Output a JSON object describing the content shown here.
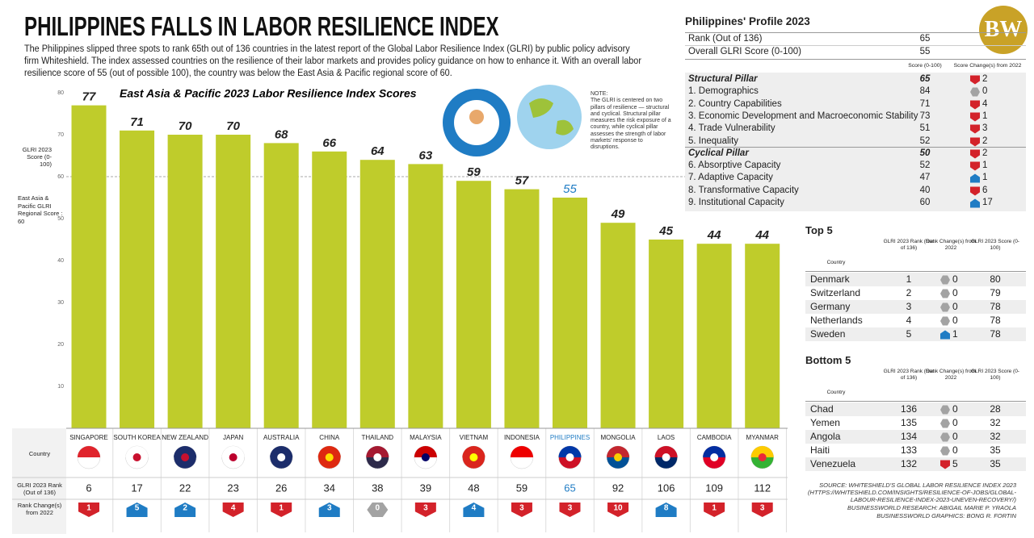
{
  "header": {
    "title": "PHILIPPINES FALLS IN LABOR RESILIENCE INDEX",
    "text": "The Philippines slipped three spots to rank 65th out of 136 countries in the latest report of the Global Labor Resilience Index (GLRI) by public policy advisory firm Whiteshield. The index assessed countries on the resilience of their labor markets and provides policy guidance on how to enhance it. With an overall labor resilience score of 55 (out of possible 100), the country was below the East Asia & Pacific regional score of 60.",
    "logo": "BW"
  },
  "direction_colors": {
    "down": "#d3222a",
    "up": "#1f7cc4",
    "same": "#a3a3a3"
  },
  "chart_data": {
    "type": "bar",
    "title": "East Asia & Pacific 2023 Labor Resilience Index Scores",
    "ylabel": "GLRI 2023 Score (0-100)",
    "categories": [
      "SINGAPORE",
      "SOUTH KOREA",
      "NEW ZEALAND",
      "JAPAN",
      "AUSTRALIA",
      "CHINA",
      "THAILAND",
      "MALAYSIA",
      "VIETNAM",
      "INDONESIA",
      "PHILIPPINES",
      "MONGOLIA",
      "LAOS",
      "CAMBODIA",
      "MYANMAR"
    ],
    "values": [
      77,
      71,
      70,
      70,
      68,
      66,
      64,
      63,
      59,
      57,
      55,
      49,
      45,
      44,
      44
    ],
    "color": "#bfcc2b",
    "highlight": "PHILIPPINES",
    "highlight_color": "#1f7cc4",
    "ylim": [
      0,
      80
    ],
    "yticks": [
      10,
      20,
      30,
      40,
      50,
      60,
      70,
      80
    ],
    "grid": false,
    "reference": {
      "value": 60,
      "label": "East Asia & Pacific GLRI Regional Score : 60"
    },
    "row_labels": {
      "country": "Country",
      "rank": "GLRI 2023 Rank (Out of 136)",
      "change": "Rank Change(s) from 2022"
    },
    "rank": [
      6,
      17,
      22,
      23,
      26,
      34,
      38,
      39,
      48,
      59,
      65,
      92,
      106,
      109,
      112
    ],
    "rank_change": [
      1,
      5,
      2,
      4,
      1,
      3,
      0,
      3,
      4,
      3,
      3,
      10,
      8,
      1,
      3
    ],
    "rank_change_direction": [
      "down",
      "up",
      "up",
      "down",
      "down",
      "up",
      "same",
      "down",
      "up",
      "down",
      "down",
      "down",
      "up",
      "down",
      "down"
    ],
    "note": {
      "title": "NOTE:",
      "text": "The GLRI is centered on two pillars of resilience — structural and cyclical. Structural pillar measures the risk exposure of a country, while cyclical pillar assesses the strength of labor markets' response to disruptions."
    }
  },
  "profile": {
    "title": "Philippines' Profile 2023",
    "rank_label": "Rank (Out of 136)",
    "rank": 65,
    "score_label": "Overall GLRI Score (0-100)",
    "score": 55,
    "columns": [
      "Score (0-100)",
      "Score Change(s) from 2022"
    ],
    "rows": [
      {
        "label": "Structural Pillar",
        "score": 65,
        "change": 2,
        "direction": "down",
        "bold": true
      },
      {
        "label": "1. Demographics",
        "score": 84,
        "change": 0,
        "direction": "same"
      },
      {
        "label": "2. Country Capabilities",
        "score": 71,
        "change": 4,
        "direction": "down"
      },
      {
        "label": "3. Economic Development and Macroeconomic Stability",
        "score": 73,
        "change": 1,
        "direction": "down"
      },
      {
        "label": "4. Trade Vulnerability",
        "score": 51,
        "change": 3,
        "direction": "down"
      },
      {
        "label": "5. Inequality",
        "score": 52,
        "change": 2,
        "direction": "down"
      },
      {
        "label": "Cyclical Pillar",
        "score": 50,
        "change": 2,
        "direction": "down",
        "bold": true
      },
      {
        "label": "6. Absorptive Capacity",
        "score": 52,
        "change": 1,
        "direction": "down"
      },
      {
        "label": "7. Adaptive Capacity",
        "score": 47,
        "change": 1,
        "direction": "up"
      },
      {
        "label": "8. Transformative Capacity",
        "score": 40,
        "change": 6,
        "direction": "down"
      },
      {
        "label": "9. Institutional Capacity",
        "score": 60,
        "change": 17,
        "direction": "up"
      }
    ]
  },
  "top5": {
    "title": "Top 5",
    "columns": [
      "Country",
      "GLRI 2023 Rank (Out of 136)",
      "Rank Change(s) from 2022",
      "GLRI 2023 Score (0-100)"
    ],
    "rows": [
      {
        "country": "Denmark",
        "rank": 1,
        "change": 0,
        "direction": "same",
        "score": 80
      },
      {
        "country": "Switzerland",
        "rank": 2,
        "change": 0,
        "direction": "same",
        "score": 79
      },
      {
        "country": "Germany",
        "rank": 3,
        "change": 0,
        "direction": "same",
        "score": 78
      },
      {
        "country": "Netherlands",
        "rank": 4,
        "change": 0,
        "direction": "same",
        "score": 78
      },
      {
        "country": "Sweden",
        "rank": 5,
        "change": 1,
        "direction": "up",
        "score": 78
      }
    ]
  },
  "bottom5": {
    "title": "Bottom 5",
    "columns": [
      "Country",
      "GLRI 2023 Rank (Out of 136)",
      "Rank Change(s) from 2022",
      "GLRI 2023 Score (0-100)"
    ],
    "rows": [
      {
        "country": "Chad",
        "rank": 136,
        "change": 0,
        "direction": "same",
        "score": 28
      },
      {
        "country": "Yemen",
        "rank": 135,
        "change": 0,
        "direction": "same",
        "score": 32
      },
      {
        "country": "Angola",
        "rank": 134,
        "change": 0,
        "direction": "same",
        "score": 32
      },
      {
        "country": "Haiti",
        "rank": 133,
        "change": 0,
        "direction": "same",
        "score": 35
      },
      {
        "country": "Venezuela",
        "rank": 132,
        "change": 5,
        "direction": "down",
        "score": 35
      }
    ]
  },
  "source": [
    "SOURCE: WHITESHIELD'S GLOBAL LABOR RESILIENCE INDEX 2023 (HTTPS://WHITESHIELD.COM/INSIGHTS/RESILIENCE-OF-JOBS/GLOBAL-LABOUR-RESILIENCE-INDEX-2023-UNEVEN-RECOVERY/)",
    "BUSINESSWORLD RESEARCH: ABIGAIL MARIE P. YRAOLA",
    "BUSINESSWORLD GRAPHICS: BONG R. FORTIN"
  ]
}
